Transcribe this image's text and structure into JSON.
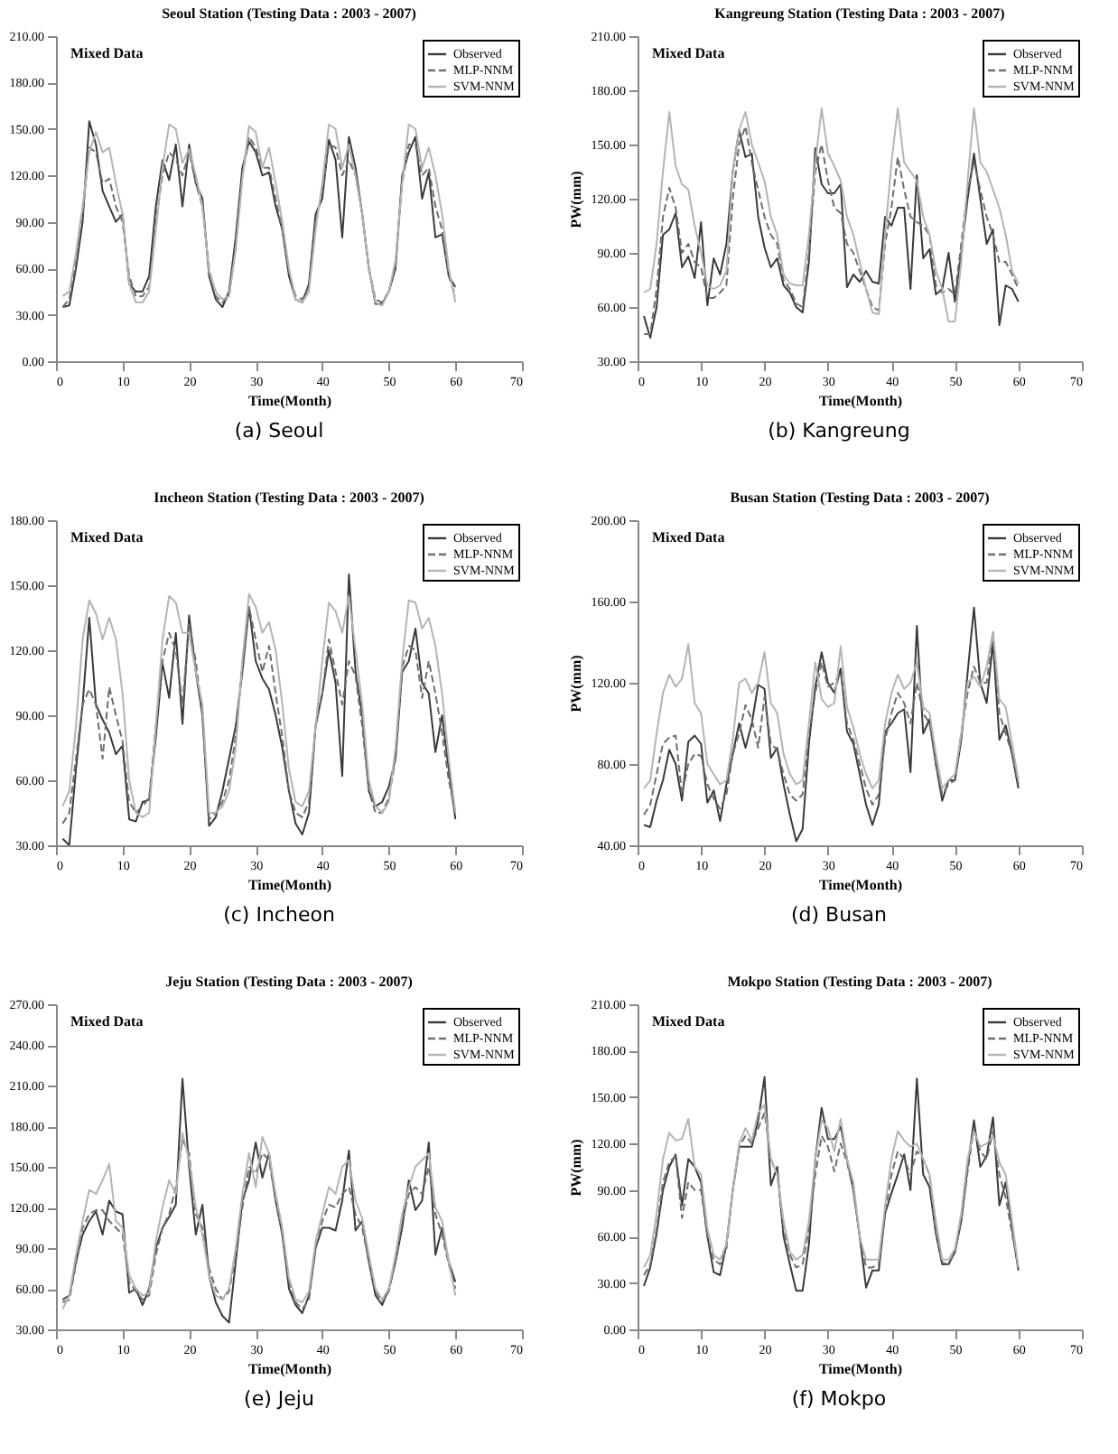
{
  "chart_data": [
    {
      "type": "line",
      "title": "Seoul Station (Testing Data : 2003 - 2007)",
      "annotations": [
        "Mixed Data",
        "(a) Seoul"
      ],
      "xlabel": "Time(Month)",
      "xlim": [
        0,
        70
      ],
      "xticks": [
        0,
        10,
        20,
        30,
        40,
        50,
        60,
        70
      ],
      "ylim": [
        0,
        210
      ],
      "yticks": [
        {
          "value": 0,
          "label": "0.00"
        },
        {
          "value": 30,
          "label": "30.00"
        },
        {
          "value": 60,
          "label": "60.00"
        },
        {
          "value": 90,
          "label": "90.00"
        },
        {
          "value": 120,
          "label": "120.00"
        },
        {
          "value": 150,
          "label": "150.00"
        },
        {
          "value": 180,
          "label": "180.00"
        },
        {
          "value": 210,
          "label": "210.00"
        }
      ],
      "legend": "top right",
      "x": [
        1,
        2,
        3,
        4,
        5,
        6,
        7,
        8,
        9,
        10,
        11,
        12,
        13,
        14,
        15,
        16,
        17,
        18,
        19,
        20,
        21,
        22,
        23,
        24,
        25,
        26,
        27,
        28,
        29,
        30,
        31,
        32,
        33,
        34,
        35,
        36,
        37,
        38,
        39,
        40,
        41,
        42,
        43,
        44,
        45,
        46,
        47,
        48,
        49,
        50,
        51,
        52,
        53,
        54,
        55,
        56,
        57,
        58,
        59,
        60
      ],
      "series": [
        {
          "name": "Observed",
          "color": "#3a3a3a",
          "line_style": "solid",
          "values": [
            35,
            36,
            60,
            90,
            155,
            140,
            110,
            100,
            90,
            95,
            50,
            45,
            45,
            55,
            100,
            130,
            117,
            140,
            100,
            140,
            115,
            105,
            55,
            40,
            35,
            45,
            80,
            125,
            142,
            135,
            120,
            122,
            100,
            85,
            55,
            40,
            38,
            50,
            95,
            105,
            143,
            130,
            80,
            145,
            125,
            95,
            60,
            37,
            37,
            45,
            60,
            120,
            135,
            145,
            105,
            122,
            80,
            82,
            55,
            48
          ]
        },
        {
          "name": "MLP-NNM",
          "color": "#6e6e6e",
          "line_style": "dashed",
          "values": [
            35,
            40,
            65,
            95,
            138,
            135,
            115,
            118,
            100,
            90,
            55,
            42,
            42,
            48,
            90,
            120,
            135,
            130,
            120,
            135,
            115,
            100,
            60,
            42,
            38,
            42,
            75,
            120,
            145,
            138,
            125,
            125,
            105,
            85,
            58,
            42,
            40,
            48,
            90,
            110,
            140,
            138,
            120,
            130,
            120,
            95,
            60,
            40,
            38,
            45,
            62,
            115,
            140,
            140,
            120,
            125,
            100,
            85,
            55,
            42
          ]
        },
        {
          "name": "SVM-NNM",
          "color": "#b4b4b4",
          "line_style": "solid",
          "values": [
            42,
            45,
            70,
            100,
            135,
            148,
            135,
            138,
            115,
            95,
            50,
            38,
            38,
            45,
            85,
            125,
            153,
            150,
            128,
            137,
            120,
            100,
            58,
            45,
            40,
            42,
            72,
            118,
            152,
            148,
            125,
            138,
            115,
            90,
            60,
            40,
            38,
            45,
            85,
            115,
            153,
            150,
            125,
            140,
            120,
            95,
            60,
            38,
            36,
            45,
            65,
            115,
            153,
            150,
            125,
            138,
            120,
            95,
            60,
            38
          ]
        }
      ]
    },
    {
      "type": "line",
      "title": "Kangreung Station (Testing Data : 2003 - 2007)",
      "annotations": [
        "Mixed Data",
        "(b) Kangreung"
      ],
      "xlabel": "Time(Month)",
      "ylabel": "PW(mm)",
      "xlim": [
        0,
        70
      ],
      "xticks": [
        0,
        10,
        20,
        30,
        40,
        50,
        60,
        70
      ],
      "ylim": [
        30,
        210
      ],
      "yticks": [
        {
          "value": 30,
          "label": "30.00"
        },
        {
          "value": 60,
          "label": "60.00"
        },
        {
          "value": 90,
          "label": "90.00"
        },
        {
          "value": 120,
          "label": "120.00"
        },
        {
          "value": 150,
          "label": "150.00"
        },
        {
          "value": 180,
          "label": "180.00"
        },
        {
          "value": 210,
          "label": "210.00"
        }
      ],
      "legend": "top right",
      "x": [
        1,
        2,
        3,
        4,
        5,
        6,
        7,
        8,
        9,
        10,
        11,
        12,
        13,
        14,
        15,
        16,
        17,
        18,
        19,
        20,
        21,
        22,
        23,
        24,
        25,
        26,
        27,
        28,
        29,
        30,
        31,
        32,
        33,
        34,
        35,
        36,
        37,
        38,
        39,
        40,
        41,
        42,
        43,
        44,
        45,
        46,
        47,
        48,
        49,
        50,
        51,
        52,
        53,
        54,
        55,
        56,
        57,
        58,
        59,
        60
      ],
      "series": [
        {
          "name": "Observed",
          "color": "#3a3a3a",
          "line_style": "solid",
          "values": [
            55,
            43,
            60,
            100,
            103,
            112,
            82,
            88,
            76,
            107,
            61,
            87,
            78,
            95,
            135,
            158,
            143,
            145,
            110,
            93,
            82,
            87,
            72,
            68,
            60,
            57,
            85,
            148,
            128,
            123,
            123,
            128,
            71,
            78,
            74,
            80,
            74,
            73,
            110,
            105,
            115,
            115,
            70,
            133,
            87,
            92,
            67,
            70,
            90,
            63,
            90,
            120,
            145,
            120,
            95,
            103,
            50,
            72,
            70,
            63
          ]
        },
        {
          "name": "MLP-NNM",
          "color": "#6e6e6e",
          "line_style": "dashed",
          "values": [
            45,
            45,
            70,
            110,
            126,
            115,
            90,
            95,
            85,
            82,
            65,
            65,
            68,
            72,
            120,
            150,
            160,
            140,
            125,
            110,
            100,
            95,
            75,
            70,
            62,
            60,
            90,
            135,
            150,
            130,
            115,
            112,
            95,
            90,
            80,
            70,
            60,
            58,
            95,
            115,
            143,
            125,
            110,
            107,
            105,
            100,
            72,
            68,
            70,
            67,
            95,
            125,
            140,
            125,
            110,
            100,
            85,
            85,
            78,
            70
          ]
        },
        {
          "name": "SVM-NNM",
          "color": "#b4b4b4",
          "line_style": "solid",
          "values": [
            68,
            70,
            95,
            135,
            168,
            138,
            128,
            125,
            105,
            90,
            72,
            70,
            72,
            80,
            135,
            158,
            168,
            150,
            140,
            130,
            110,
            100,
            78,
            73,
            72,
            72,
            100,
            140,
            170,
            145,
            138,
            130,
            110,
            100,
            85,
            70,
            57,
            56,
            100,
            140,
            170,
            140,
            135,
            130,
            110,
            100,
            80,
            70,
            52,
            52,
            85,
            130,
            170,
            140,
            135,
            125,
            115,
            100,
            80,
            73
          ]
        }
      ]
    },
    {
      "type": "line",
      "title": "Incheon Station (Testing Data : 2003 - 2007)",
      "annotations": [
        "Mixed Data",
        "(c) Incheon"
      ],
      "xlabel": "Time(Month)",
      "xlim": [
        0,
        70
      ],
      "xticks": [
        0,
        10,
        20,
        30,
        40,
        50,
        60,
        70
      ],
      "ylim": [
        30,
        180
      ],
      "yticks": [
        {
          "value": 30,
          "label": "30.00"
        },
        {
          "value": 60,
          "label": "60.00"
        },
        {
          "value": 90,
          "label": "90.00"
        },
        {
          "value": 120,
          "label": "120.00"
        },
        {
          "value": 150,
          "label": "150.00"
        },
        {
          "value": 180,
          "label": "180.00"
        }
      ],
      "legend": "top right",
      "x": [
        1,
        2,
        3,
        4,
        5,
        6,
        7,
        8,
        9,
        10,
        11,
        12,
        13,
        14,
        15,
        16,
        17,
        18,
        19,
        20,
        21,
        22,
        23,
        24,
        25,
        26,
        27,
        28,
        29,
        30,
        31,
        32,
        33,
        34,
        35,
        36,
        37,
        38,
        39,
        40,
        41,
        42,
        43,
        44,
        45,
        46,
        47,
        48,
        49,
        50,
        51,
        52,
        53,
        54,
        55,
        56,
        57,
        58,
        59,
        60
      ],
      "series": [
        {
          "name": "Observed",
          "color": "#3a3a3a",
          "line_style": "solid",
          "values": [
            33,
            30,
            65,
            95,
            135,
            95,
            88,
            82,
            72,
            76,
            42,
            41,
            50,
            51,
            80,
            114,
            98,
            128,
            86,
            136,
            110,
            90,
            39,
            43,
            55,
            70,
            85,
            110,
            140,
            115,
            107,
            102,
            90,
            75,
            55,
            40,
            35,
            45,
            85,
            100,
            120,
            105,
            62,
            155,
            110,
            90,
            55,
            48,
            50,
            57,
            70,
            110,
            115,
            130,
            105,
            100,
            73,
            90,
            65,
            42
          ]
        },
        {
          "name": "MLP-NNM",
          "color": "#6e6e6e",
          "line_style": "dashed",
          "values": [
            40,
            45,
            70,
            95,
            102,
            95,
            70,
            103,
            90,
            78,
            50,
            45,
            48,
            52,
            85,
            115,
            128,
            120,
            95,
            132,
            115,
            90,
            42,
            45,
            50,
            60,
            80,
            115,
            140,
            125,
            110,
            122,
            100,
            80,
            55,
            45,
            43,
            50,
            85,
            100,
            125,
            110,
            95,
            115,
            108,
            85,
            55,
            45,
            45,
            52,
            70,
            112,
            122,
            120,
            98,
            115,
            100,
            82,
            60,
            45
          ]
        },
        {
          "name": "SVM-NNM",
          "color": "#b4b4b4",
          "line_style": "solid",
          "values": [
            48,
            55,
            85,
            125,
            143,
            137,
            125,
            135,
            125,
            100,
            60,
            45,
            43,
            45,
            85,
            125,
            145,
            142,
            128,
            128,
            110,
            95,
            45,
            45,
            48,
            55,
            75,
            115,
            146,
            140,
            128,
            133,
            120,
            95,
            65,
            50,
            48,
            55,
            85,
            115,
            142,
            138,
            128,
            145,
            120,
            95,
            60,
            48,
            45,
            50,
            75,
            115,
            143,
            142,
            130,
            135,
            122,
            100,
            70,
            45
          ]
        }
      ]
    },
    {
      "type": "line",
      "title": "Busan Station (Testing Data : 2003 - 2007)",
      "annotations": [
        "Mixed Data",
        "(d) Busan"
      ],
      "xlabel": "Time(Month)",
      "ylabel": "PW(mm)",
      "xlim": [
        0,
        70
      ],
      "xticks": [
        0,
        10,
        20,
        30,
        40,
        50,
        60,
        70
      ],
      "ylim": [
        40,
        200
      ],
      "yticks": [
        {
          "value": 40,
          "label": "40.00"
        },
        {
          "value": 80,
          "label": "80.00"
        },
        {
          "value": 120,
          "label": "120.00"
        },
        {
          "value": 160,
          "label": "160.00"
        },
        {
          "value": 200,
          "label": "200.00"
        }
      ],
      "legend": "top right",
      "x": [
        1,
        2,
        3,
        4,
        5,
        6,
        7,
        8,
        9,
        10,
        11,
        12,
        13,
        14,
        15,
        16,
        17,
        18,
        19,
        20,
        21,
        22,
        23,
        24,
        25,
        26,
        27,
        28,
        29,
        30,
        31,
        32,
        33,
        34,
        35,
        36,
        37,
        38,
        39,
        40,
        41,
        42,
        43,
        44,
        45,
        46,
        47,
        48,
        49,
        50,
        51,
        52,
        53,
        54,
        55,
        56,
        57,
        58,
        59,
        60
      ],
      "series": [
        {
          "name": "Observed",
          "color": "#3a3a3a",
          "line_style": "solid",
          "values": [
            50,
            49,
            62,
            72,
            87,
            80,
            62,
            91,
            94,
            90,
            61,
            67,
            52,
            70,
            85,
            100,
            88,
            100,
            119,
            117,
            83,
            88,
            70,
            55,
            42,
            48,
            90,
            118,
            135,
            120,
            115,
            127,
            96,
            90,
            75,
            60,
            50,
            60,
            96,
            100,
            105,
            107,
            76,
            148,
            95,
            102,
            80,
            62,
            72,
            72,
            92,
            125,
            157,
            120,
            110,
            140,
            92,
            99,
            85,
            68
          ]
        },
        {
          "name": "MLP-NNM",
          "color": "#6e6e6e",
          "line_style": "dashed",
          "values": [
            55,
            60,
            75,
            90,
            93,
            94,
            65,
            80,
            85,
            84,
            70,
            63,
            58,
            65,
            85,
            95,
            109,
            102,
            88,
            113,
            90,
            87,
            75,
            65,
            62,
            65,
            95,
            115,
            130,
            118,
            120,
            125,
            100,
            92,
            80,
            68,
            60,
            65,
            92,
            105,
            115,
            110,
            100,
            120,
            105,
            100,
            80,
            65,
            70,
            72,
            95,
            115,
            128,
            120,
            120,
            145,
            105,
            95,
            85,
            70
          ]
        },
        {
          "name": "SVM-NNM",
          "color": "#b4b4b4",
          "line_style": "solid",
          "values": [
            68,
            72,
            95,
            115,
            124,
            118,
            122,
            139,
            110,
            105,
            80,
            75,
            70,
            72,
            92,
            120,
            122,
            115,
            120,
            135,
            110,
            105,
            85,
            75,
            70,
            72,
            100,
            130,
            112,
            108,
            110,
            138,
            108,
            98,
            85,
            75,
            68,
            72,
            100,
            115,
            124,
            117,
            120,
            130,
            108,
            105,
            85,
            68,
            72,
            75,
            95,
            120,
            123,
            118,
            128,
            145,
            112,
            108,
            90,
            72
          ]
        }
      ]
    },
    {
      "type": "line",
      "title": "Jeju Station (Testing Data : 2003 - 2007)",
      "annotations": [
        "Mixed Data",
        "(e) Jeju"
      ],
      "xlabel": "Time(Month)",
      "xlim": [
        0,
        70
      ],
      "xticks": [
        0,
        10,
        20,
        30,
        40,
        50,
        60,
        70
      ],
      "ylim": [
        30,
        270
      ],
      "yticks": [
        {
          "value": 30,
          "label": "30.00"
        },
        {
          "value": 60,
          "label": "60.00"
        },
        {
          "value": 90,
          "label": "90.00"
        },
        {
          "value": 120,
          "label": "120.00"
        },
        {
          "value": 150,
          "label": "150.00"
        },
        {
          "value": 180,
          "label": "180.00"
        },
        {
          "value": 210,
          "label": "210.00"
        },
        {
          "value": 240,
          "label": "240.00"
        },
        {
          "value": 270,
          "label": "270.00"
        }
      ],
      "legend": "top right",
      "x": [
        1,
        2,
        3,
        4,
        5,
        6,
        7,
        8,
        9,
        10,
        11,
        12,
        13,
        14,
        15,
        16,
        17,
        18,
        19,
        20,
        21,
        22,
        23,
        24,
        25,
        26,
        27,
        28,
        29,
        30,
        31,
        32,
        33,
        34,
        35,
        36,
        37,
        38,
        39,
        40,
        41,
        42,
        43,
        44,
        45,
        46,
        47,
        48,
        49,
        50,
        51,
        52,
        53,
        54,
        55,
        56,
        57,
        58,
        59,
        60
      ],
      "series": [
        {
          "name": "Observed",
          "color": "#3a3a3a",
          "line_style": "solid",
          "values": [
            52,
            55,
            80,
            100,
            110,
            117,
            100,
            125,
            117,
            115,
            57,
            60,
            48,
            60,
            90,
            105,
            113,
            122,
            215,
            150,
            100,
            122,
            70,
            50,
            40,
            35,
            80,
            125,
            140,
            168,
            142,
            160,
            125,
            100,
            60,
            48,
            42,
            55,
            90,
            105,
            105,
            103,
            125,
            162,
            103,
            110,
            80,
            55,
            48,
            60,
            80,
            105,
            140,
            118,
            125,
            168,
            85,
            105,
            80,
            65
          ]
        },
        {
          "name": "MLP-NNM",
          "color": "#6e6e6e",
          "line_style": "dashed",
          "values": [
            50,
            52,
            78,
            105,
            115,
            118,
            118,
            110,
            105,
            100,
            65,
            58,
            52,
            55,
            85,
            105,
            115,
            135,
            170,
            160,
            115,
            105,
            75,
            60,
            52,
            58,
            85,
            120,
            150,
            145,
            160,
            155,
            125,
            100,
            65,
            50,
            45,
            52,
            90,
            110,
            122,
            120,
            130,
            135,
            115,
            105,
            80,
            58,
            50,
            58,
            80,
            110,
            130,
            135,
            130,
            150,
            115,
            100,
            78,
            60
          ]
        },
        {
          "name": "SVM-NNM",
          "color": "#b4b4b4",
          "line_style": "solid",
          "values": [
            45,
            55,
            85,
            110,
            133,
            130,
            140,
            152,
            110,
            105,
            70,
            60,
            55,
            57,
            95,
            120,
            140,
            130,
            175,
            155,
            120,
            100,
            70,
            55,
            52,
            60,
            90,
            130,
            160,
            135,
            172,
            160,
            130,
            105,
            68,
            52,
            50,
            58,
            95,
            115,
            135,
            130,
            150,
            155,
            125,
            112,
            85,
            60,
            52,
            60,
            85,
            115,
            135,
            150,
            155,
            160,
            120,
            110,
            80,
            55
          ]
        }
      ]
    },
    {
      "type": "line",
      "title": "Mokpo Station (Testing Data : 2003 - 2007)",
      "annotations": [
        "Mixed Data",
        "(f) Mokpo"
      ],
      "xlabel": "Time(Month)",
      "ylabel": "PW(mm)",
      "xlim": [
        0,
        70
      ],
      "xticks": [
        0,
        10,
        20,
        30,
        40,
        50,
        60,
        70
      ],
      "ylim": [
        0,
        210
      ],
      "yticks": [
        {
          "value": 0,
          "label": "0.00"
        },
        {
          "value": 30,
          "label": "30.00"
        },
        {
          "value": 60,
          "label": "60.00"
        },
        {
          "value": 90,
          "label": "90.00"
        },
        {
          "value": 120,
          "label": "120.00"
        },
        {
          "value": 150,
          "label": "150.00"
        },
        {
          "value": 180,
          "label": "180.00"
        },
        {
          "value": 210,
          "label": "210.00"
        }
      ],
      "legend": "top right",
      "x": [
        1,
        2,
        3,
        4,
        5,
        6,
        7,
        8,
        9,
        10,
        11,
        12,
        13,
        14,
        15,
        16,
        17,
        18,
        19,
        20,
        21,
        22,
        23,
        24,
        25,
        26,
        27,
        28,
        29,
        30,
        31,
        32,
        33,
        34,
        35,
        36,
        37,
        38,
        39,
        40,
        41,
        42,
        43,
        44,
        45,
        46,
        47,
        48,
        49,
        50,
        51,
        52,
        53,
        54,
        55,
        56,
        57,
        58,
        59,
        60
      ],
      "series": [
        {
          "name": "Observed",
          "color": "#3a3a3a",
          "line_style": "solid",
          "values": [
            28,
            40,
            62,
            90,
            105,
            113,
            80,
            110,
            105,
            95,
            60,
            37,
            35,
            55,
            90,
            118,
            118,
            118,
            135,
            163,
            93,
            105,
            60,
            42,
            25,
            25,
            55,
            110,
            143,
            123,
            123,
            131,
            110,
            90,
            60,
            27,
            38,
            38,
            75,
            88,
            100,
            113,
            90,
            162,
            100,
            92,
            62,
            42,
            42,
            50,
            70,
            105,
            135,
            105,
            112,
            137,
            80,
            95,
            65,
            38
          ]
        },
        {
          "name": "MLP-NNM",
          "color": "#6e6e6e",
          "line_style": "dashed",
          "values": [
            35,
            42,
            65,
            95,
            108,
            112,
            72,
            95,
            90,
            90,
            60,
            45,
            42,
            52,
            90,
            118,
            125,
            120,
            130,
            140,
            110,
            100,
            65,
            48,
            40,
            42,
            65,
            100,
            125,
            118,
            102,
            120,
            108,
            90,
            60,
            40,
            40,
            42,
            75,
            100,
            115,
            110,
            100,
            115,
            110,
            100,
            62,
            43,
            42,
            50,
            70,
            102,
            130,
            115,
            110,
            128,
            100,
            85,
            62,
            40
          ]
        },
        {
          "name": "SVM-NNM",
          "color": "#b4b4b4",
          "line_style": "solid",
          "values": [
            40,
            48,
            75,
            110,
            127,
            122,
            123,
            136,
            105,
            100,
            65,
            48,
            45,
            55,
            90,
            120,
            130,
            122,
            140,
            145,
            110,
            100,
            70,
            50,
            45,
            48,
            70,
            110,
            135,
            130,
            115,
            136,
            110,
            95,
            60,
            45,
            45,
            45,
            80,
            110,
            128,
            122,
            118,
            120,
            110,
            100,
            70,
            45,
            45,
            52,
            75,
            110,
            128,
            118,
            120,
            125,
            108,
            100,
            70,
            40
          ]
        }
      ]
    }
  ]
}
